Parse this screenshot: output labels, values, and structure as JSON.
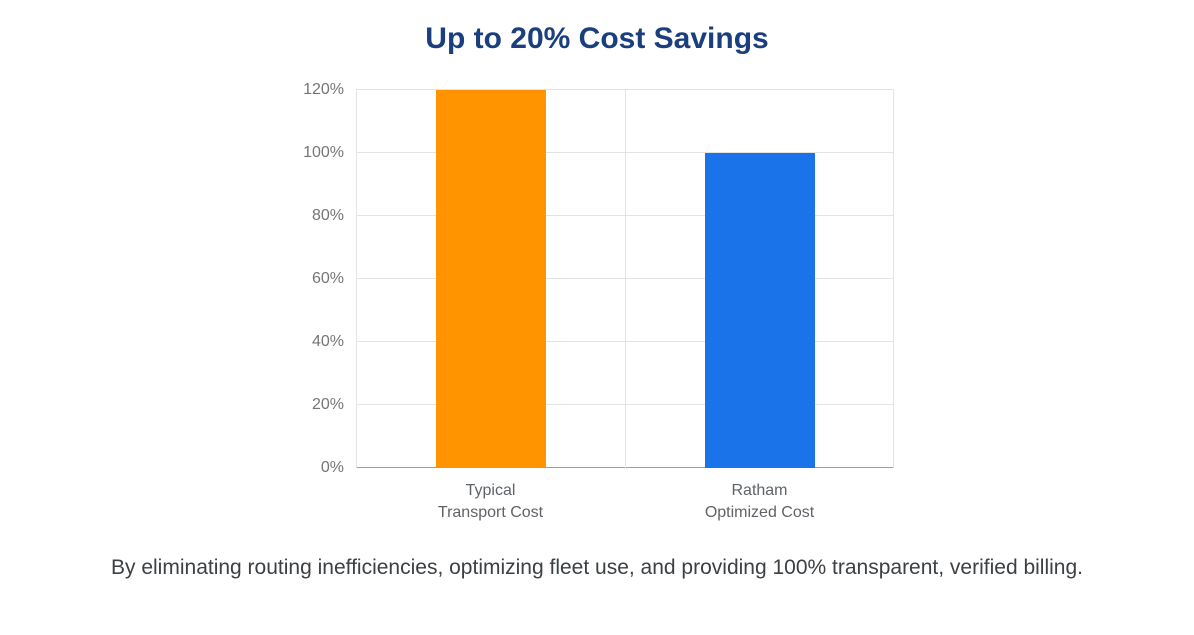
{
  "chart_data": {
    "type": "bar",
    "title": "Up to 20% Cost Savings",
    "categories": [
      [
        "Typical",
        "Transport Cost"
      ],
      [
        "Ratham",
        "Optimized Cost"
      ]
    ],
    "category_ids": [
      "typical-transport-cost",
      "ratham-optimized-cost"
    ],
    "values": [
      120,
      100
    ],
    "bar_colors": [
      "#ff9300",
      "#1a73e8"
    ],
    "yticks": [
      0,
      20,
      40,
      60,
      80,
      100,
      120
    ],
    "ytick_labels": [
      "0%",
      "20%",
      "40%",
      "60%",
      "80%",
      "100%",
      "120%"
    ],
    "ylim": [
      0,
      120
    ],
    "grid": true,
    "legend": "none",
    "caption": "By eliminating routing inefficiencies, optimizing fleet use, and providing 100% transparent, verified billing.",
    "colors": {
      "title": "#1a3e7e",
      "axis_text": "#757575",
      "category_text": "#5f6368",
      "caption_text": "#3c4043",
      "gridline": "#e3e3e3",
      "baseline": "#9e9e9e"
    }
  }
}
